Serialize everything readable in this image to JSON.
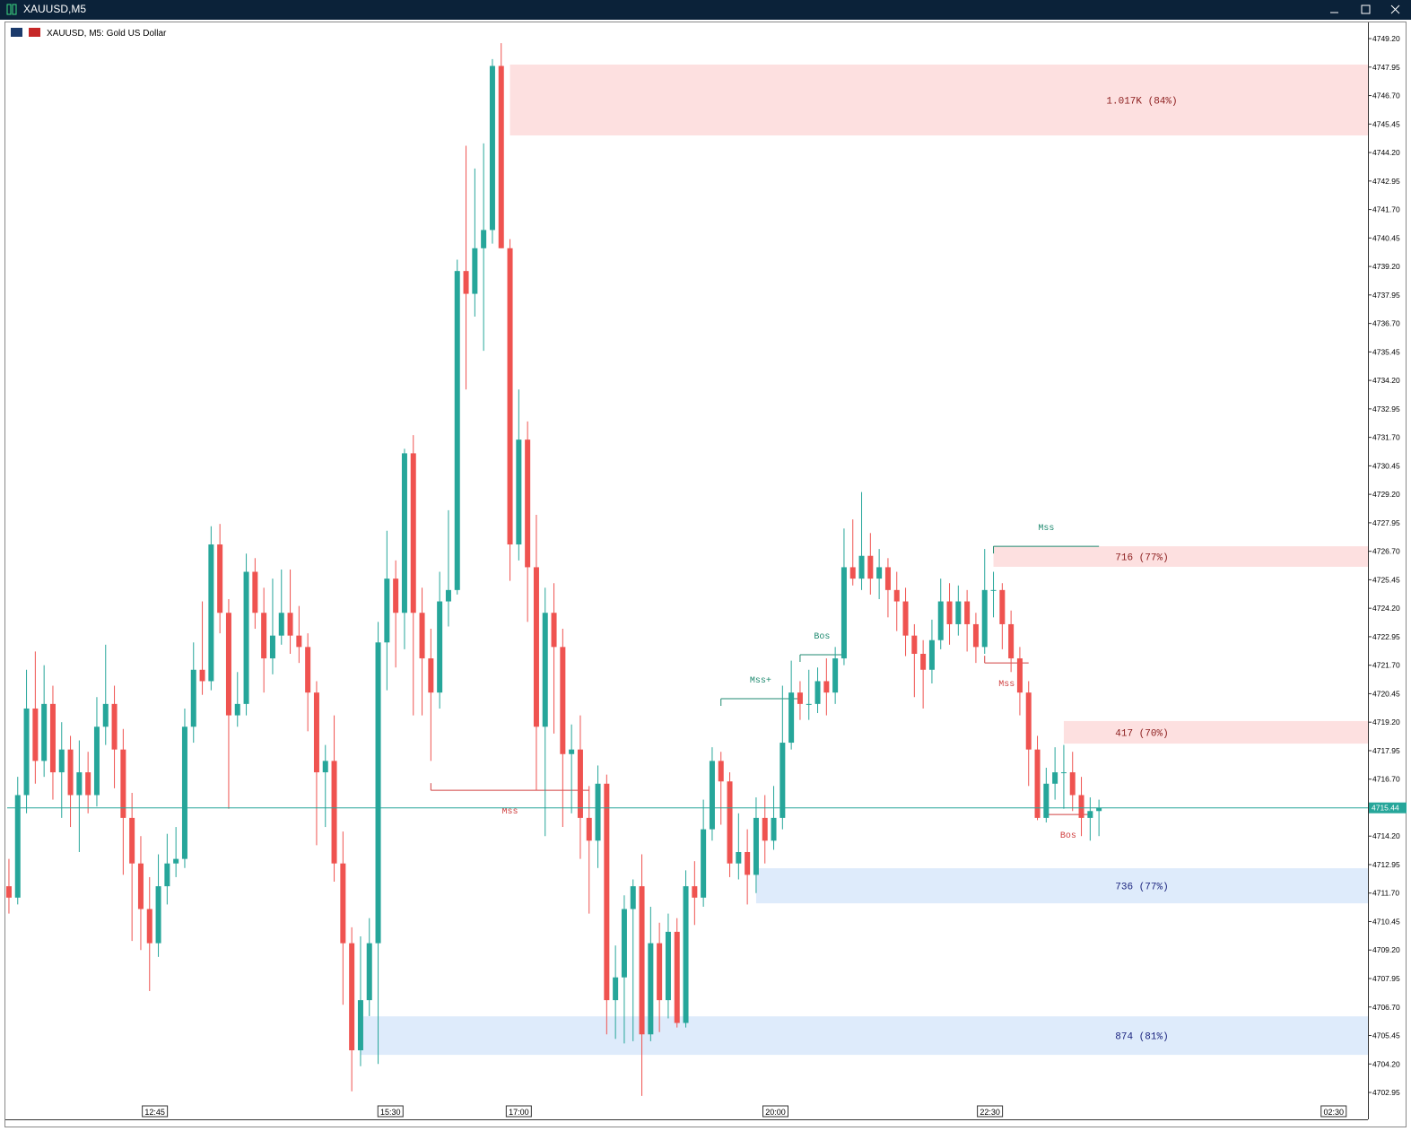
{
  "window": {
    "title": "XAUUSD,M5"
  },
  "chart_data": {
    "type": "candlestick",
    "title": "XAUUSD, M5:  Gold US Dollar",
    "up_color": "#26a69a",
    "down_color": "#ef5350",
    "ylim": [
      4701.77,
      4749.91
    ],
    "xlim": [
      -0.2,
      154.6
    ],
    "yticks": [
      {
        "value": 4749.2,
        "label": "4749.20"
      },
      {
        "value": 4747.95,
        "label": "4747.95"
      },
      {
        "value": 4746.7,
        "label": "4746.70"
      },
      {
        "value": 4745.45,
        "label": "4745.45"
      },
      {
        "value": 4744.2,
        "label": "4744.20"
      },
      {
        "value": 4742.95,
        "label": "4742.95"
      },
      {
        "value": 4741.7,
        "label": "4741.70"
      },
      {
        "value": 4740.45,
        "label": "4740.45"
      },
      {
        "value": 4739.2,
        "label": "4739.20"
      },
      {
        "value": 4737.95,
        "label": "4737.95"
      },
      {
        "value": 4736.7,
        "label": "4736.70"
      },
      {
        "value": 4735.45,
        "label": "4735.45"
      },
      {
        "value": 4734.2,
        "label": "4734.20"
      },
      {
        "value": 4732.95,
        "label": "4732.95"
      },
      {
        "value": 4731.7,
        "label": "4731.70"
      },
      {
        "value": 4730.45,
        "label": "4730.45"
      },
      {
        "value": 4729.2,
        "label": "4729.20"
      },
      {
        "value": 4727.95,
        "label": "4727.95"
      },
      {
        "value": 4726.7,
        "label": "4726.70"
      },
      {
        "value": 4725.45,
        "label": "4725.45"
      },
      {
        "value": 4724.2,
        "label": "4724.20"
      },
      {
        "value": 4722.95,
        "label": "4722.95"
      },
      {
        "value": 4721.7,
        "label": "4721.70"
      },
      {
        "value": 4720.45,
        "label": "4720.45"
      },
      {
        "value": 4719.2,
        "label": "4719.20"
      },
      {
        "value": 4717.95,
        "label": "4717.95"
      },
      {
        "value": 4716.7,
        "label": "4716.70"
      },
      {
        "value": 4714.2,
        "label": "4714.20"
      },
      {
        "value": 4712.95,
        "label": "4712.95"
      },
      {
        "value": 4711.7,
        "label": "4711.70"
      },
      {
        "value": 4710.45,
        "label": "4710.45"
      },
      {
        "value": 4709.2,
        "label": "4709.20"
      },
      {
        "value": 4707.95,
        "label": "4707.95"
      },
      {
        "value": 4706.7,
        "label": "4706.70"
      },
      {
        "value": 4705.45,
        "label": "4705.45"
      },
      {
        "value": 4704.2,
        "label": "4704.20"
      },
      {
        "value": 4702.95,
        "label": "4702.95"
      }
    ],
    "xticks": [
      {
        "value": 16.6,
        "label": "12:45"
      },
      {
        "value": 43.4,
        "label": "15:30"
      },
      {
        "value": 58,
        "label": "17:00"
      },
      {
        "value": 87.2,
        "label": "20:00"
      },
      {
        "value": 111.6,
        "label": "22:30"
      },
      {
        "value": 150.7,
        "label": "02:30"
      }
    ],
    "candles": [
      [
        4712,
        4713.2,
        4710.8,
        4711.5
      ],
      [
        4711.5,
        4716.8,
        4711.2,
        4716
      ],
      [
        4716,
        4721.5,
        4715.2,
        4719.8
      ],
      [
        4719.8,
        4722.3,
        4716.5,
        4717.5
      ],
      [
        4717.5,
        4721.7,
        4716.8,
        4720
      ],
      [
        4720,
        4720.8,
        4715.8,
        4717
      ],
      [
        4717,
        4719.2,
        4715,
        4718
      ],
      [
        4718,
        4718.6,
        4714.6,
        4716
      ],
      [
        4716,
        4718.4,
        4713.5,
        4717
      ],
      [
        4717,
        4717.9,
        4715.2,
        4716
      ],
      [
        4716,
        4720.3,
        4715.5,
        4719
      ],
      [
        4719,
        4722.6,
        4718.2,
        4720
      ],
      [
        4720,
        4720.8,
        4716.3,
        4718
      ],
      [
        4718,
        4718.9,
        4712.5,
        4715
      ],
      [
        4715,
        4716.1,
        4709.6,
        4713
      ],
      [
        4713,
        4714.2,
        4709.2,
        4711
      ],
      [
        4711,
        4712.4,
        4707.4,
        4709.5
      ],
      [
        4709.5,
        4713.4,
        4708.9,
        4712
      ],
      [
        4712,
        4714.3,
        4711.2,
        4713
      ],
      [
        4713,
        4714.6,
        4712.4,
        4713.2
      ],
      [
        4713.2,
        4719.8,
        4712.8,
        4719
      ],
      [
        4719,
        4722.7,
        4718.3,
        4721.5
      ],
      [
        4721.5,
        4724.5,
        4720.4,
        4721
      ],
      [
        4721,
        4727.8,
        4720.6,
        4727
      ],
      [
        4727,
        4727.9,
        4723.1,
        4724
      ],
      [
        4724,
        4724.6,
        4715.4,
        4719.5
      ],
      [
        4719.5,
        4721.4,
        4719,
        4720
      ],
      [
        4720,
        4726.6,
        4719.5,
        4725.8
      ],
      [
        4725.8,
        4726.4,
        4723.3,
        4724
      ],
      [
        4724,
        4725.1,
        4720.5,
        4722
      ],
      [
        4722,
        4725.5,
        4721.3,
        4723
      ],
      [
        4723,
        4725.9,
        4722.6,
        4724
      ],
      [
        4724,
        4725.9,
        4722.2,
        4723
      ],
      [
        4723,
        4724.3,
        4721.8,
        4722.5
      ],
      [
        4722.5,
        4723.1,
        4718.8,
        4720.5
      ],
      [
        4720.5,
        4721,
        4713.8,
        4717
      ],
      [
        4717,
        4718.2,
        4714.6,
        4717.5
      ],
      [
        4717.5,
        4719.5,
        4712.2,
        4713
      ],
      [
        4713,
        4714.4,
        4706.8,
        4709.5
      ],
      [
        4709.5,
        4710.2,
        4703,
        4704.8
      ],
      [
        4704.8,
        4709.8,
        4704.1,
        4707
      ],
      [
        4707,
        4710.6,
        4706.3,
        4709.5
      ],
      [
        4709.5,
        4723.6,
        4704.2,
        4722.7
      ],
      [
        4722.7,
        4727.6,
        4720.6,
        4725.5
      ],
      [
        4725.5,
        4726.3,
        4721.6,
        4724
      ],
      [
        4724,
        4731.2,
        4722.4,
        4731
      ],
      [
        4731,
        4731.8,
        4719.5,
        4724
      ],
      [
        4724,
        4725.1,
        4719.5,
        4722
      ],
      [
        4722,
        4723.3,
        4717.5,
        4720.5
      ],
      [
        4720.5,
        4725.8,
        4719.8,
        4724.5
      ],
      [
        4724.5,
        4728.5,
        4723.4,
        4725
      ],
      [
        4725,
        4739.5,
        4724.8,
        4739
      ],
      [
        4739,
        4744.5,
        4733.8,
        4738
      ],
      [
        4738,
        4743.5,
        4737,
        4740
      ],
      [
        4740,
        4744.6,
        4735.5,
        4740.8
      ],
      [
        4740.8,
        4748.3,
        4740.2,
        4748
      ],
      [
        4748,
        4749,
        4740,
        4740
      ],
      [
        4740,
        4740.4,
        4725.4,
        4727
      ],
      [
        4727,
        4733.8,
        4726.3,
        4731.6
      ],
      [
        4731.6,
        4732.4,
        4723.6,
        4726
      ],
      [
        4726,
        4728.3,
        4716.2,
        4719
      ],
      [
        4719,
        4725.1,
        4714.2,
        4724
      ],
      [
        4724,
        4725.3,
        4718.7,
        4722.5
      ],
      [
        4722.5,
        4723.3,
        4714.6,
        4717.8
      ],
      [
        4717.8,
        4719.1,
        4715.2,
        4718
      ],
      [
        4718,
        4719.5,
        4713.2,
        4715
      ],
      [
        4715,
        4716.4,
        4710.8,
        4714
      ],
      [
        4714,
        4717.3,
        4712.8,
        4716.5
      ],
      [
        4716.5,
        4716.9,
        4705.5,
        4707
      ],
      [
        4707,
        4709.4,
        4705.3,
        4708
      ],
      [
        4708,
        4711.6,
        4705.1,
        4711
      ],
      [
        4711,
        4712.3,
        4705.2,
        4712
      ],
      [
        4712,
        4713.4,
        4702.8,
        4705.5
      ],
      [
        4705.5,
        4711.1,
        4705.2,
        4709.5
      ],
      [
        4709.5,
        4710.4,
        4705.6,
        4707
      ],
      [
        4707,
        4710.8,
        4706.2,
        4710
      ],
      [
        4710,
        4710.6,
        4705.8,
        4706
      ],
      [
        4706,
        4712.7,
        4705.8,
        4712
      ],
      [
        4712,
        4713.1,
        4710.3,
        4711.5
      ],
      [
        4711.5,
        4715.8,
        4711.1,
        4714.5
      ],
      [
        4714.5,
        4718.1,
        4714,
        4717.5
      ],
      [
        4717.5,
        4717.9,
        4714.7,
        4716.6
      ],
      [
        4716.6,
        4717,
        4712.4,
        4713
      ],
      [
        4713,
        4715.2,
        4712.3,
        4713.5
      ],
      [
        4713.5,
        4714.5,
        4711.2,
        4712.5
      ],
      [
        4712.5,
        4715.9,
        4711.7,
        4715
      ],
      [
        4715,
        4716,
        4713,
        4714
      ],
      [
        4714,
        4716.4,
        4713.6,
        4715
      ],
      [
        4715,
        4720.8,
        4714.5,
        4718.3
      ],
      [
        4718.3,
        4721.9,
        4718,
        4720.5
      ],
      [
        4720.5,
        4721,
        4719.3,
        4720
      ],
      [
        4720,
        4721.5,
        4719.3,
        4720
      ],
      [
        4720,
        4721.6,
        4719.6,
        4721
      ],
      [
        4721,
        4722,
        4719.5,
        4720.5
      ],
      [
        4720.5,
        4722.5,
        4720,
        4722
      ],
      [
        4722,
        4727.7,
        4721.7,
        4726
      ],
      [
        4726,
        4728.1,
        4725.2,
        4725.5
      ],
      [
        4725.5,
        4729.3,
        4725,
        4726.5
      ],
      [
        4726.5,
        4727.5,
        4724.8,
        4725.5
      ],
      [
        4725.5,
        4726.8,
        4724.6,
        4726
      ],
      [
        4726,
        4726.4,
        4723.8,
        4725
      ],
      [
        4725,
        4725.8,
        4723.2,
        4724.5
      ],
      [
        4724.5,
        4725.1,
        4722.1,
        4723
      ],
      [
        4723,
        4723.5,
        4720.3,
        4722.2
      ],
      [
        4722.2,
        4722.8,
        4719.8,
        4721.5
      ],
      [
        4721.5,
        4723.7,
        4720.9,
        4722.8
      ],
      [
        4722.8,
        4725.5,
        4722.4,
        4724.5
      ],
      [
        4724.5,
        4725.3,
        4722.6,
        4723.5
      ],
      [
        4723.5,
        4725.2,
        4723,
        4724.5
      ],
      [
        4724.5,
        4725,
        4722.3,
        4723.5
      ],
      [
        4723.5,
        4724,
        4721.8,
        4722.5
      ],
      [
        4722.5,
        4726.8,
        4722.2,
        4725
      ],
      [
        4725,
        4725.8,
        4723.8,
        4725
      ],
      [
        4725,
        4725.3,
        4722.4,
        4723.5
      ],
      [
        4723.5,
        4724.1,
        4721.4,
        4722
      ],
      [
        4722,
        4722.5,
        4719.5,
        4720.5
      ],
      [
        4720.5,
        4721,
        4716.4,
        4718
      ],
      [
        4718,
        4718.6,
        4714.9,
        4715
      ],
      [
        4715,
        4717.2,
        4714.8,
        4716.5
      ],
      [
        4716.5,
        4718.1,
        4715.8,
        4717
      ],
      [
        4717,
        4718.2,
        4715.4,
        4717
      ],
      [
        4717,
        4717.9,
        4715.3,
        4716
      ],
      [
        4716,
        4716.8,
        4714.2,
        4715
      ],
      [
        4715,
        4715.9,
        4714,
        4715.3
      ],
      [
        4715.3,
        4715.8,
        4714.2,
        4715.44
      ]
    ],
    "zones": [
      {
        "from": 57,
        "low": 4744.95,
        "high": 4748.06,
        "label": "1.017K (84%)",
        "color": "#fde0e0",
        "text_color": "#8b1c1c"
      },
      {
        "from": 112,
        "low": 4726.02,
        "high": 4726.92,
        "label": "716 (77%)",
        "color": "#fde0e0",
        "text_color": "#8b1c1c"
      },
      {
        "from": 120,
        "low": 4718.26,
        "high": 4719.25,
        "label": "417 (70%)",
        "color": "#fde0e0",
        "text_color": "#8b1c1c"
      },
      {
        "from": 85,
        "low": 4711.25,
        "high": 4712.79,
        "label": "736 (77%)",
        "color": "#deebfb",
        "text_color": "#1a237e"
      },
      {
        "from": 40,
        "low": 4704.6,
        "high": 4706.29,
        "label": "874 (81%)",
        "color": "#deebfb",
        "text_color": "#1a237e"
      }
    ],
    "structures": [
      {
        "label": "Mss",
        "price": 4716.21,
        "from": 48,
        "to": 66,
        "color": "#d04040"
      },
      {
        "label": "Mss+",
        "price": 4720.23,
        "from": 81,
        "to": 90,
        "color": "#1f8a70"
      },
      {
        "label": "Bos",
        "price": 4722.16,
        "from": 90,
        "to": 95,
        "color": "#1f8a70"
      },
      {
        "label": "Mss",
        "price": 4726.92,
        "from": 112,
        "to": 124,
        "color": "#1f8a70"
      },
      {
        "label": "Mss",
        "price": 4721.8,
        "from": 111,
        "to": 116,
        "color": "#d04040"
      },
      {
        "label": "Bos",
        "price": 4715.15,
        "from": 118,
        "to": 123,
        "color": "#d04040"
      }
    ]
  }
}
